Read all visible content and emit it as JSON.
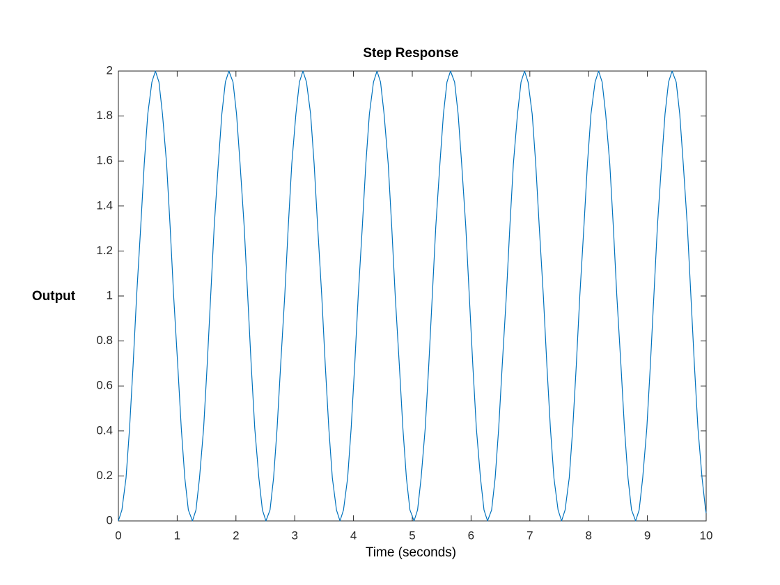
{
  "chart_data": {
    "type": "line",
    "title": "Step Response",
    "xlabel": "Time (seconds)",
    "ylabel": "Output",
    "xlim": [
      0,
      10
    ],
    "ylim": [
      0,
      2
    ],
    "xticks": [
      0,
      1,
      2,
      3,
      4,
      5,
      6,
      7,
      8,
      9,
      10
    ],
    "yticks": [
      0,
      0.2,
      0.4,
      0.6,
      0.8,
      1,
      1.2,
      1.4,
      1.6,
      1.8,
      2
    ],
    "grid": false,
    "box": true,
    "x": [
      0,
      0.06,
      0.13,
      0.19,
      0.25,
      0.31,
      0.38,
      0.44,
      0.5,
      0.57,
      0.63,
      0.69,
      0.75,
      0.82,
      0.88,
      0.94,
      1.01,
      1.07,
      1.13,
      1.19,
      1.26,
      1.32,
      1.38,
      1.45,
      1.51,
      1.57,
      1.63,
      1.7,
      1.76,
      1.82,
      1.88,
      1.95,
      2.01,
      2.07,
      2.14,
      2.2,
      2.26,
      2.32,
      2.39,
      2.45,
      2.51,
      2.58,
      2.64,
      2.7,
      2.76,
      2.83,
      2.89,
      2.95,
      3.02,
      3.08,
      3.14,
      3.2,
      3.27,
      3.33,
      3.39,
      3.46,
      3.52,
      3.58,
      3.64,
      3.71,
      3.77,
      3.83,
      3.9,
      3.96,
      4.02,
      4.08,
      4.15,
      4.21,
      4.27,
      4.34,
      4.4,
      4.46,
      4.52,
      4.59,
      4.65,
      4.71,
      4.78,
      4.84,
      4.9,
      4.96,
      5.03,
      5.09,
      5.15,
      5.22,
      5.28,
      5.34,
      5.4,
      5.47,
      5.53,
      5.59,
      5.65,
      5.72,
      5.78,
      5.84,
      5.91,
      5.97,
      6.03,
      6.09,
      6.16,
      6.22,
      6.28,
      6.35,
      6.41,
      6.47,
      6.53,
      6.6,
      6.66,
      6.72,
      6.79,
      6.85,
      6.91,
      6.97,
      7.04,
      7.1,
      7.16,
      7.23,
      7.29,
      7.35,
      7.41,
      7.48,
      7.54,
      7.6,
      7.67,
      7.73,
      7.79,
      7.85,
      7.92,
      7.98,
      8.04,
      8.11,
      8.17,
      8.23,
      8.29,
      8.36,
      8.42,
      8.48,
      8.55,
      8.61,
      8.67,
      8.73,
      8.8,
      8.86,
      8.92,
      8.99,
      9.05,
      9.11,
      9.17,
      9.24,
      9.3,
      9.36,
      9.42,
      9.49,
      9.55,
      9.61,
      9.68,
      9.74,
      9.8,
      9.86,
      9.93,
      9.99,
      10
    ],
    "series": [
      {
        "name": "Output",
        "color": "#0072bd",
        "values": [
          0,
          0.049,
          0.191,
          0.412,
          0.691,
          1,
          1.309,
          1.588,
          1.809,
          1.951,
          2,
          1.951,
          1.809,
          1.588,
          1.309,
          1,
          0.691,
          0.412,
          0.191,
          0.049,
          0,
          0.049,
          0.191,
          0.412,
          0.691,
          1,
          1.309,
          1.588,
          1.809,
          1.951,
          2,
          1.951,
          1.809,
          1.588,
          1.309,
          1,
          0.691,
          0.412,
          0.191,
          0.049,
          0,
          0.049,
          0.191,
          0.412,
          0.691,
          1,
          1.309,
          1.588,
          1.809,
          1.951,
          2,
          1.951,
          1.809,
          1.588,
          1.309,
          1,
          0.691,
          0.412,
          0.191,
          0.049,
          0,
          0.049,
          0.191,
          0.412,
          0.691,
          1,
          1.309,
          1.588,
          1.809,
          1.951,
          2,
          1.951,
          1.809,
          1.588,
          1.309,
          1,
          0.691,
          0.412,
          0.191,
          0.049,
          0,
          0.049,
          0.191,
          0.412,
          0.691,
          1,
          1.309,
          1.588,
          1.809,
          1.951,
          2,
          1.951,
          1.809,
          1.588,
          1.309,
          1,
          0.691,
          0.412,
          0.191,
          0.049,
          0,
          0.049,
          0.191,
          0.412,
          0.691,
          1,
          1.309,
          1.588,
          1.809,
          1.951,
          2,
          1.951,
          1.809,
          1.588,
          1.309,
          1,
          0.691,
          0.412,
          0.191,
          0.049,
          0,
          0.049,
          0.191,
          0.412,
          0.691,
          1,
          1.309,
          1.588,
          1.809,
          1.951,
          2,
          1.951,
          1.809,
          1.588,
          1.309,
          1,
          0.691,
          0.412,
          0.191,
          0.049,
          0,
          0.049,
          0.191,
          0.412,
          0.691,
          1,
          1.309,
          1.588,
          1.809,
          1.951,
          2,
          1.951,
          1.809,
          1.588,
          1.309,
          1,
          0.691,
          0.412,
          0.191,
          0.049,
          0.035
        ]
      }
    ]
  }
}
